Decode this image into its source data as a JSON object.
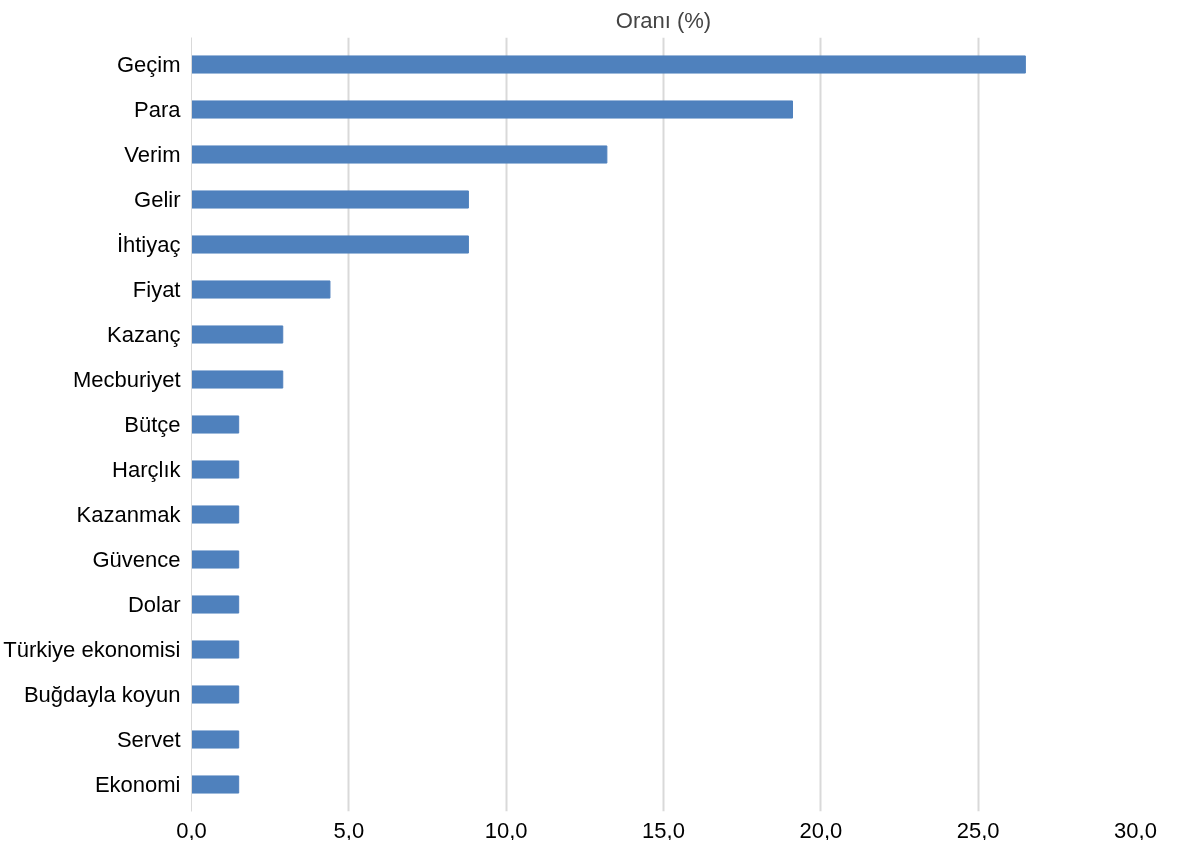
{
  "chart_data": {
    "type": "bar",
    "orientation": "horizontal",
    "title": "Oranı (%)",
    "categories": [
      "Geçim",
      "Para",
      "Verim",
      "Gelir",
      "İhtiyaç",
      "Fiyat",
      "Kazanç",
      "Mecburiyet",
      "Bütçe",
      "Harçlık",
      "Kazanmak",
      "Güvence",
      "Dolar",
      "Türkiye ekonomisi",
      "Buğdayla koyun",
      "Servet",
      "Ekonomi"
    ],
    "values": [
      26.5,
      19.1,
      13.2,
      8.8,
      8.8,
      4.4,
      2.9,
      2.9,
      1.5,
      1.5,
      1.5,
      1.5,
      1.5,
      1.5,
      1.5,
      1.5,
      1.5
    ],
    "color": "#4f81bd",
    "xlim": [
      0,
      30
    ],
    "xticks": [
      {
        "value": 0,
        "label": "0,0"
      },
      {
        "value": 5,
        "label": "5,0"
      },
      {
        "value": 10,
        "label": "10,0"
      },
      {
        "value": 15,
        "label": "15,0"
      },
      {
        "value": 20,
        "label": "20,0"
      },
      {
        "value": 25,
        "label": "25,0"
      },
      {
        "value": 30,
        "label": "30,0"
      }
    ],
    "grid": "x"
  }
}
